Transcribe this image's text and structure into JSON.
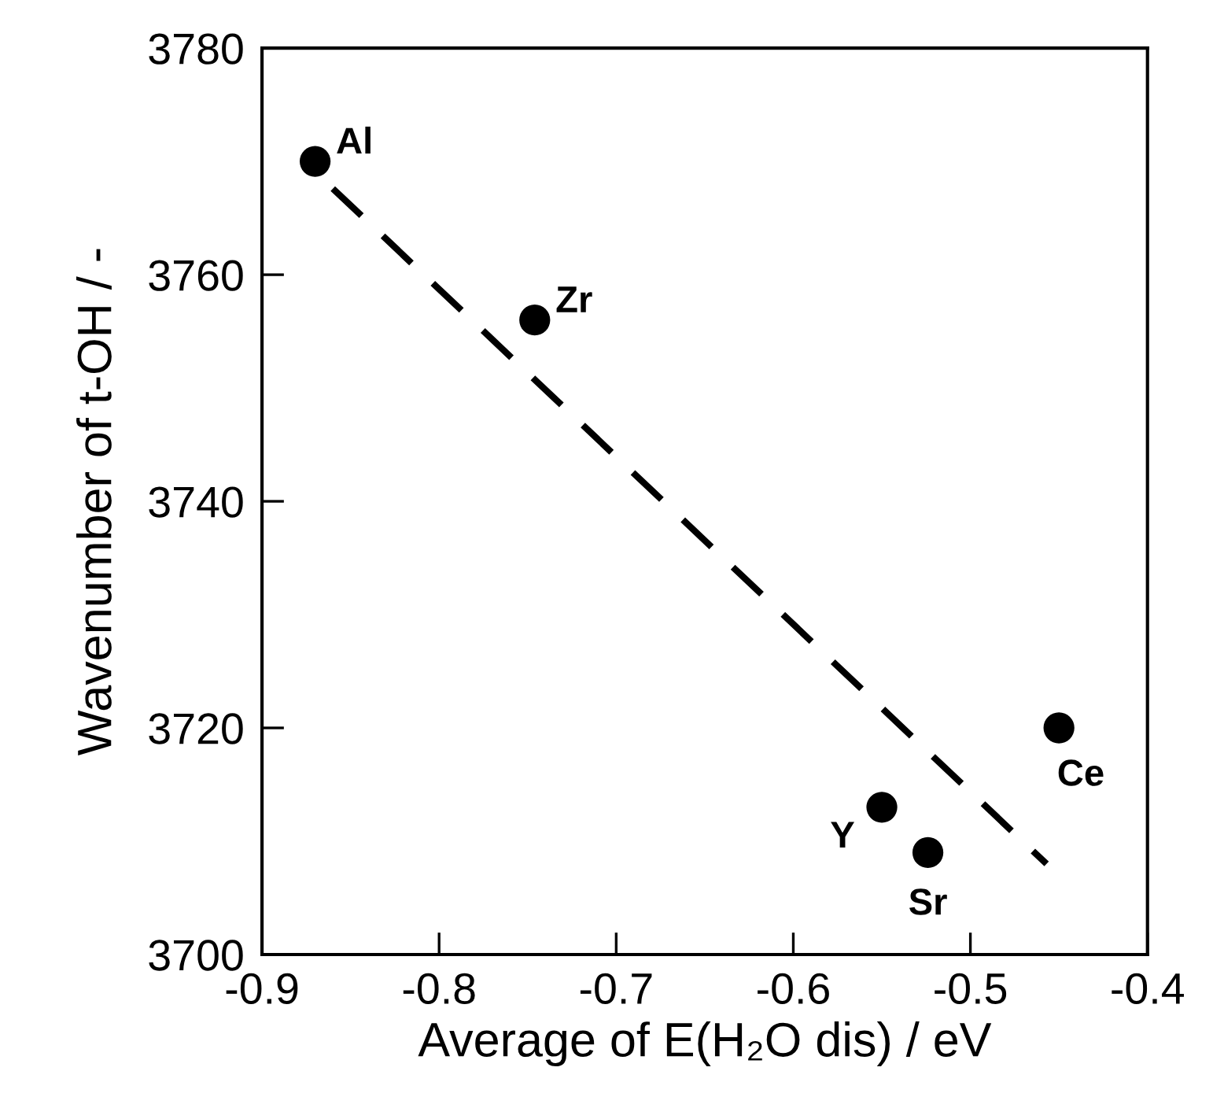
{
  "chart_data": {
    "type": "scatter",
    "xlabel": "Average of E(H₂O dis) / eV",
    "ylabel": "Wavenumber of t-OH / -",
    "series": [
      {
        "color": "#000000",
        "marker": "circle",
        "x": [
          -0.87,
          -0.746,
          -0.55,
          -0.524,
          -0.45
        ],
        "values": [
          3770,
          3756,
          3713,
          3709,
          3720
        ]
      },
      {
        "type": "line",
        "color": "#000000",
        "line_style": "dashed",
        "marker": "none",
        "x": [
          -0.86,
          -0.457
        ],
        "values": [
          3767.6,
          3708.0
        ]
      }
    ],
    "annotations": [
      {
        "text": "Al",
        "x": -0.87,
        "y": 3770
      },
      {
        "text": "Zr",
        "x": -0.746,
        "y": 3756
      },
      {
        "text": "Y",
        "x": -0.55,
        "y": 3713
      },
      {
        "text": "Sr",
        "x": -0.524,
        "y": 3709
      },
      {
        "text": "Ce",
        "x": -0.45,
        "y": 3720
      }
    ],
    "xlim": [
      -0.9,
      -0.4
    ],
    "ylim": [
      3700,
      3780
    ],
    "xticks": [
      -0.9,
      -0.8,
      -0.7,
      -0.6,
      -0.5,
      -0.4
    ],
    "yticks": [
      3700,
      3720,
      3740,
      3760,
      3780
    ],
    "grid": false,
    "legend": false
  }
}
